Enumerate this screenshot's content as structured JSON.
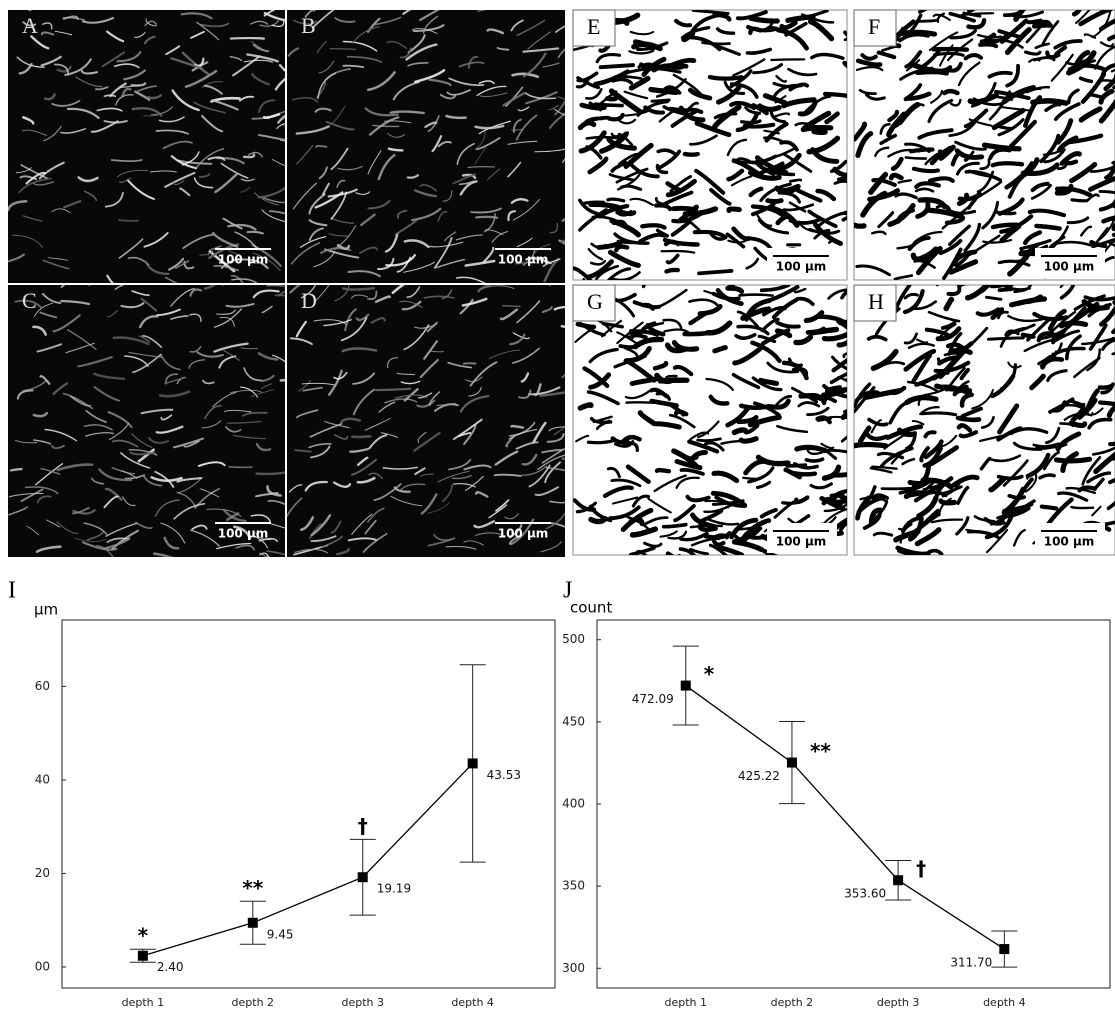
{
  "panels": [
    {
      "label": "A",
      "scale_bar": "100 μm"
    },
    {
      "label": "B",
      "scale_bar": "100 μm"
    },
    {
      "label": "C",
      "scale_bar": "100 μm"
    },
    {
      "label": "D",
      "scale_bar": "100 μm"
    },
    {
      "label": "E",
      "scale_bar": "100 μm"
    },
    {
      "label": "F",
      "scale_bar": "100 μm"
    },
    {
      "label": "G",
      "scale_bar": "100 μm"
    },
    {
      "label": "H",
      "scale_bar": "100 μm"
    }
  ],
  "chart_data": [
    {
      "type": "line",
      "panel_label": "I",
      "y_label": "μm",
      "categories": [
        "depth 1",
        "depth 2",
        "depth 3",
        "depth 4"
      ],
      "values": [
        2.4,
        9.45,
        19.19,
        43.53
      ],
      "value_labels": [
        "2.40",
        "9.45",
        "19.19",
        "43.53"
      ],
      "errors": [
        1.4,
        4.6,
        8.1,
        21.1
      ],
      "markers": [
        "*",
        "**",
        "†",
        null
      ],
      "color": "#000000",
      "ylim": [
        -4.5,
        74.2
      ],
      "yticks": [
        {
          "value": 0,
          "label": "00"
        },
        20,
        40,
        60
      ]
    },
    {
      "type": "line",
      "panel_label": "J",
      "y_label": "count",
      "categories": [
        "depth 1",
        "depth 2",
        "depth 3",
        "depth 4"
      ],
      "values": [
        472.09,
        425.22,
        353.6,
        311.7
      ],
      "value_labels": [
        "472.09",
        "425.22",
        "353.60",
        "311.70"
      ],
      "errors": [
        24,
        25,
        12,
        11
      ],
      "markers": [
        "*",
        "**",
        "†",
        null
      ],
      "color": "#000000",
      "ylim": [
        288,
        512
      ],
      "yticks": [
        300,
        350,
        400,
        450,
        500
      ]
    }
  ]
}
